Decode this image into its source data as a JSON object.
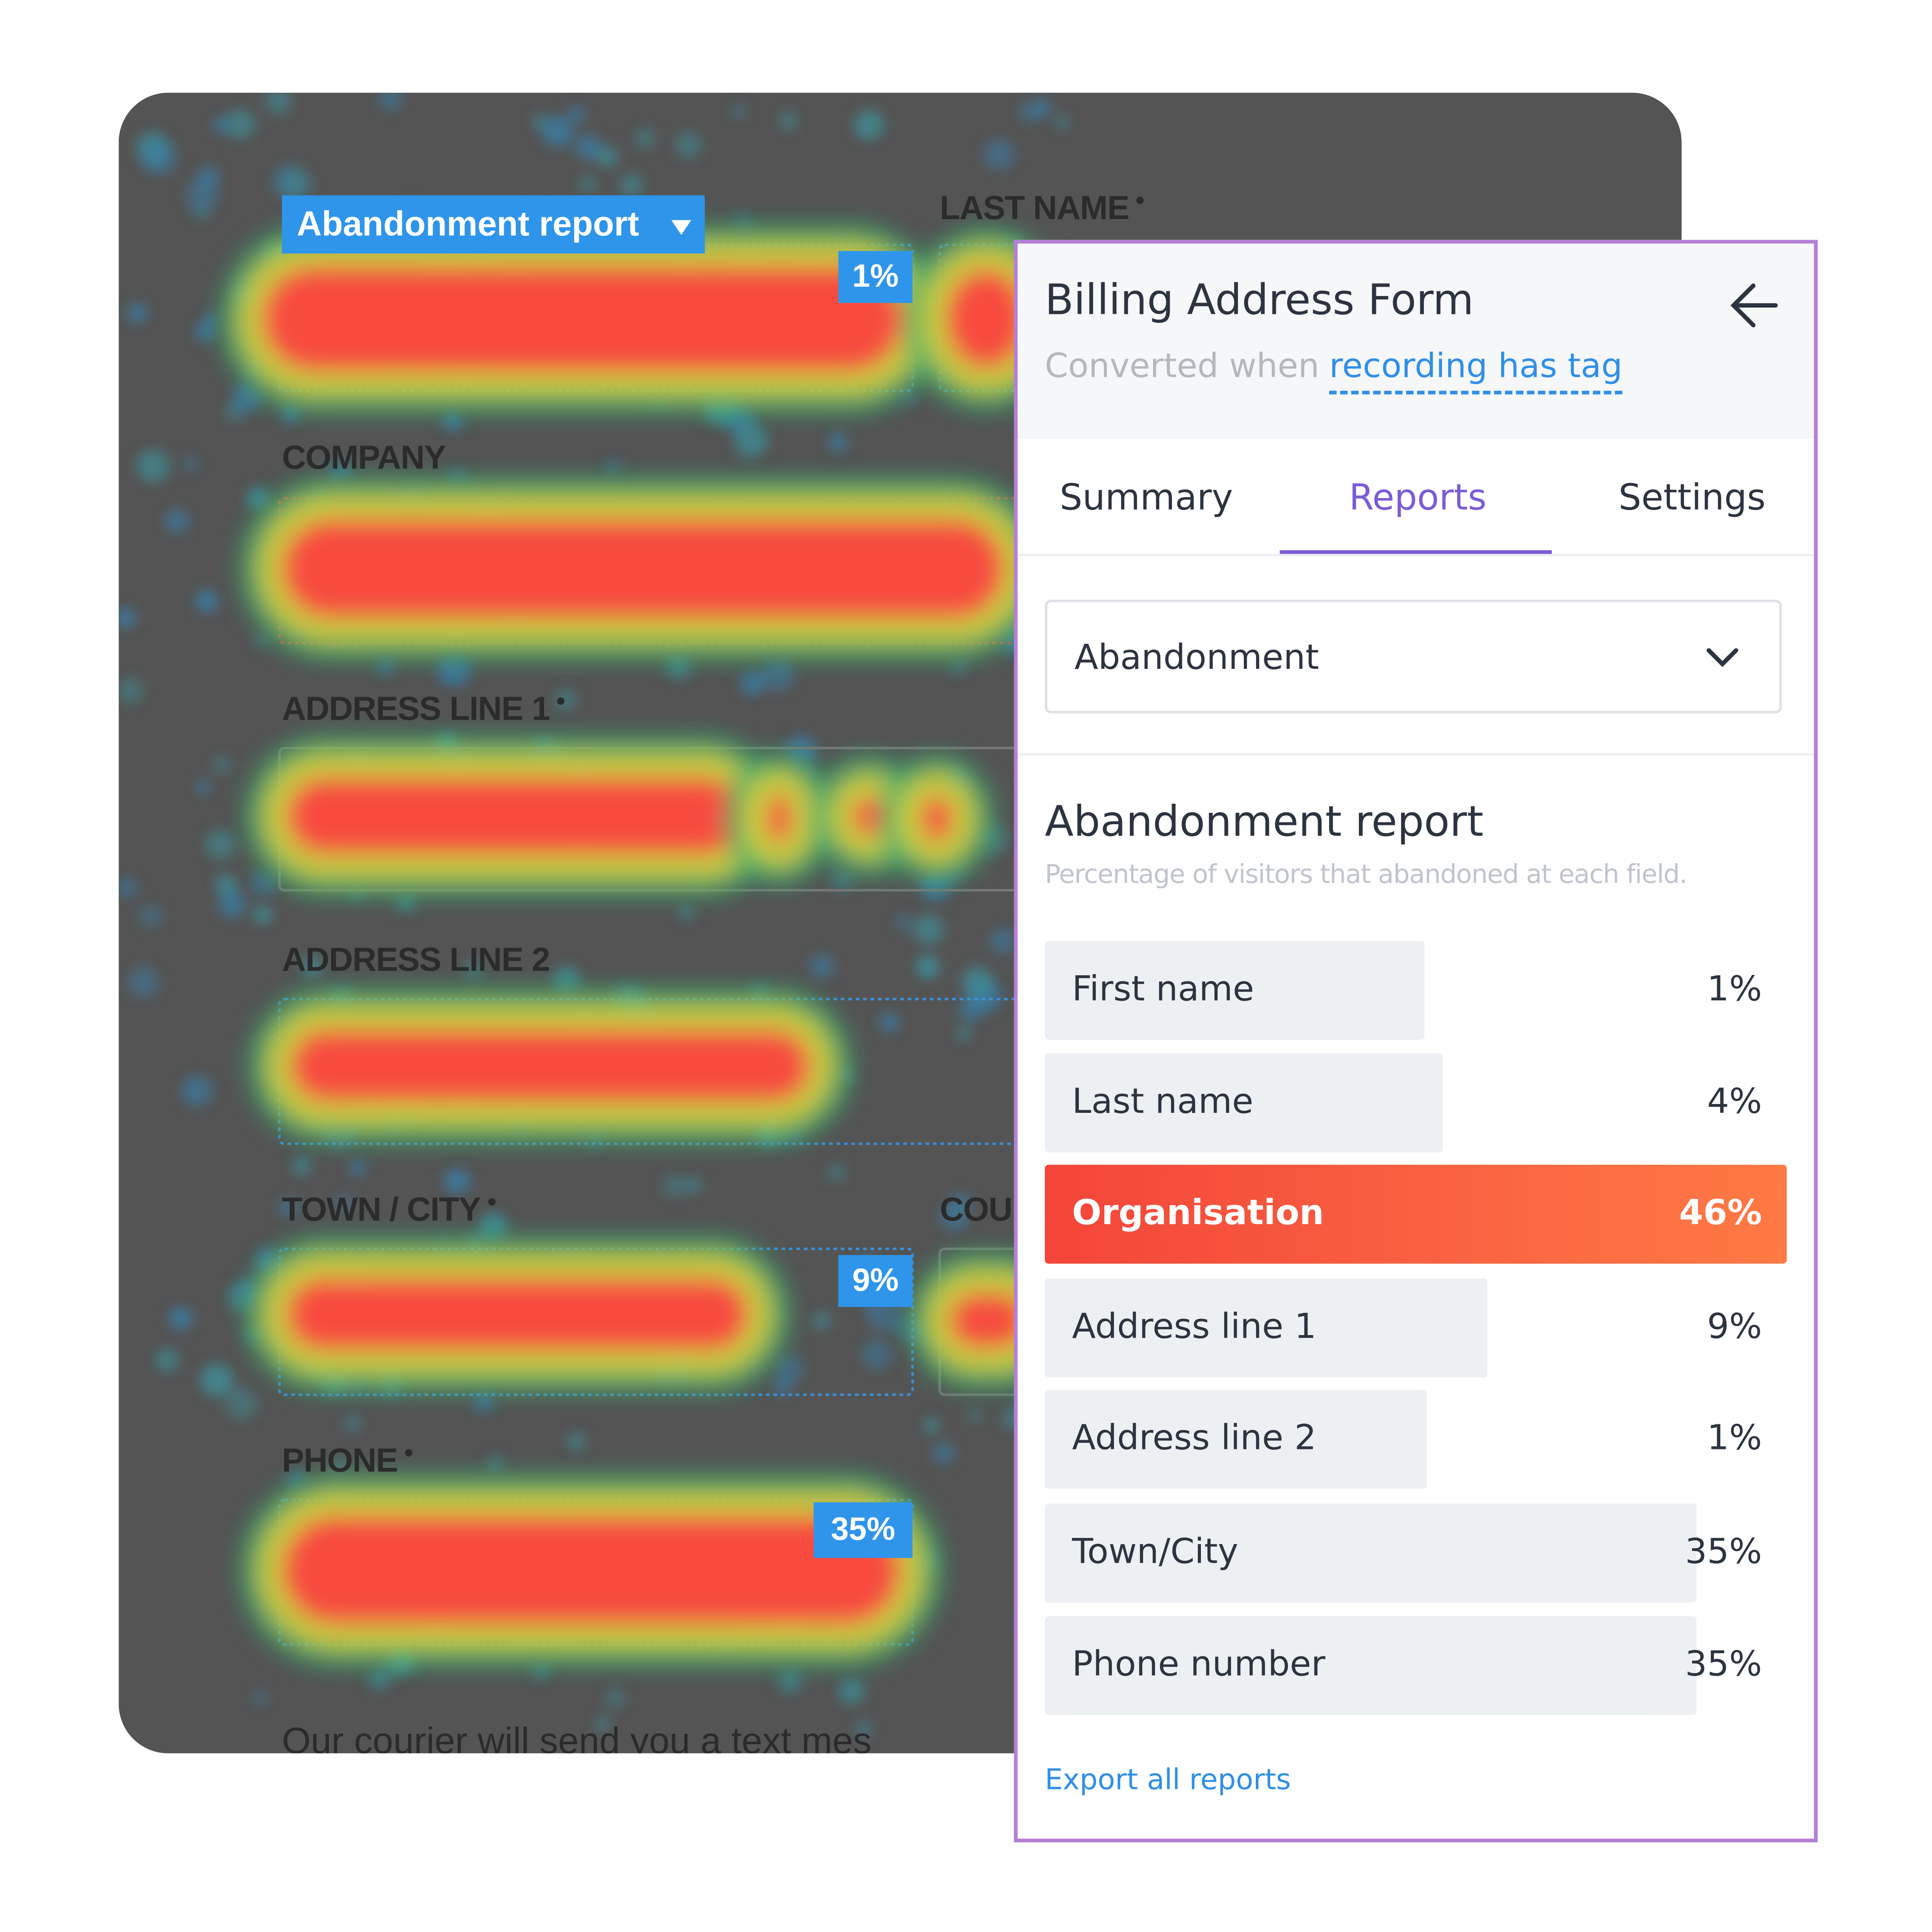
{
  "heatmap": {
    "menu": "Abandonment report",
    "fields": [
      "LAST NAME",
      "COMPANY",
      "ADDRESS LINE 1",
      "ADDRESS LINE 2",
      "TOWN / CITY",
      "COU",
      "PHONE"
    ],
    "badges": [
      "1%",
      "9%",
      "35%"
    ],
    "footer": "Our courier will send you a text mes"
  },
  "panel": {
    "title": "Billing Address Form",
    "subtitle_prefix": "Converted when",
    "subtitle_link": "recording has tag",
    "tabs": [
      "Summary",
      "Reports",
      "Settings"
    ],
    "dropdown": "Abandonment",
    "report_title": "Abandonment report",
    "report_subtitle": "Percentage of visitors that abandoned at each field.",
    "rows": [
      {
        "label": "First name",
        "value": "1%"
      },
      {
        "label": "Last name",
        "value": "4%"
      },
      {
        "label": "Organisation",
        "value": "46%"
      },
      {
        "label": "Address line 1",
        "value": "9%"
      },
      {
        "label": "Address line 2",
        "value": "1%"
      },
      {
        "label": "Town/City",
        "value": "35%"
      },
      {
        "label": "Phone number",
        "value": "35%"
      }
    ],
    "export": "Export all reports"
  }
}
